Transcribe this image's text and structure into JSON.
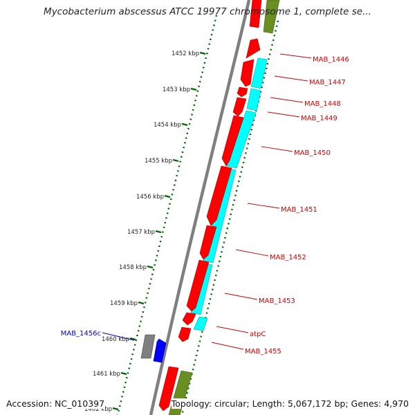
{
  "title": "Mycobacterium abscessus ATCC 19977 chromosome 1, complete se...",
  "footer": {
    "accession": "Accession: NC_010397",
    "summary": "Topology: circular; Length: 5,067,172 bp; Genes: 4,970"
  },
  "colors": {
    "forward_gene": "#ff0000",
    "cds_feature": "#00ffff",
    "rna_feature": "#6b8e23",
    "pseudo_feature": "#808080",
    "reverse_gene": "#0000ff",
    "tick": "#006400",
    "label_forward": "#cc0000",
    "label_reverse": "#0000cc"
  },
  "ticks": [
    {
      "label": "1452 kbp"
    },
    {
      "label": "1453 kbp"
    },
    {
      "label": "1454 kbp"
    },
    {
      "label": "1455 kbp"
    },
    {
      "label": "1456 kbp"
    },
    {
      "label": "1457 kbp"
    },
    {
      "label": "1458 kbp"
    },
    {
      "label": "1459 kbp"
    },
    {
      "label": "1460 kbp"
    },
    {
      "label": "1461 kbp"
    },
    {
      "label": "1462 kbp"
    }
  ],
  "gene_labels": [
    {
      "name": "MAB_1446",
      "strand": "forward"
    },
    {
      "name": "MAB_1447",
      "strand": "forward"
    },
    {
      "name": "MAB_1448",
      "strand": "forward"
    },
    {
      "name": "MAB_1449",
      "strand": "forward"
    },
    {
      "name": "MAB_1450",
      "strand": "forward"
    },
    {
      "name": "MAB_1451",
      "strand": "forward"
    },
    {
      "name": "MAB_1452",
      "strand": "forward"
    },
    {
      "name": "MAB_1453",
      "strand": "forward"
    },
    {
      "name": "atpC",
      "strand": "forward"
    },
    {
      "name": "MAB_1455",
      "strand": "forward"
    },
    {
      "name": "MAB_1456c",
      "strand": "reverse"
    }
  ]
}
